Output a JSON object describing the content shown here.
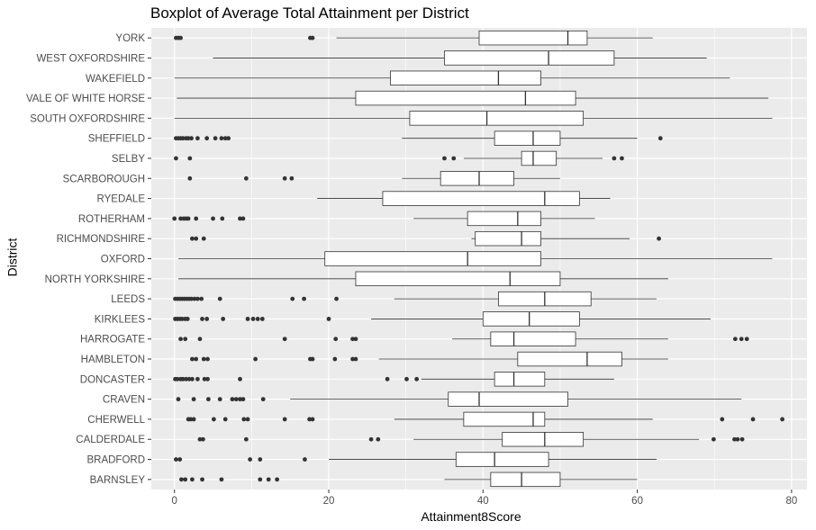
{
  "chart_data": {
    "type": "boxplot",
    "orientation": "horizontal",
    "title": "Boxplot of Average Total Attainment per District",
    "xlabel": "Attainment8Score",
    "ylabel": "District",
    "xlim": [
      -3,
      82
    ],
    "x_ticks": [
      0,
      20,
      40,
      60,
      80
    ],
    "grid": true,
    "colors": {
      "panel": "#ebebeb",
      "grid": "#ffffff",
      "box_fill": "#ffffff",
      "line": "#333333",
      "outlier": "#333333"
    },
    "categories": [
      "YORK",
      "WEST OXFORDSHIRE",
      "WAKEFIELD",
      "VALE OF WHITE HORSE",
      "SOUTH OXFORDSHIRE",
      "SHEFFIELD",
      "SELBY",
      "SCARBOROUGH",
      "RYEDALE",
      "ROTHERHAM",
      "RICHMONDSHIRE",
      "OXFORD",
      "NORTH YORKSHIRE",
      "LEEDS",
      "KIRKLEES",
      "HARROGATE",
      "HAMBLETON",
      "DONCASTER",
      "CRAVEN",
      "CHERWELL",
      "CALDERDALE",
      "BRADFORD",
      "BARNSLEY"
    ],
    "boxes": [
      {
        "category": "YORK",
        "whisker_low": 21,
        "q1": 39.5,
        "median": 51,
        "q3": 53.5,
        "whisker_high": 62,
        "outliers": [
          0.2,
          0.5,
          0.8,
          17.6,
          17.9
        ]
      },
      {
        "category": "WEST OXFORDSHIRE",
        "whisker_low": 5,
        "q1": 35,
        "median": 48.5,
        "q3": 57,
        "whisker_high": 69,
        "outliers": []
      },
      {
        "category": "WAKEFIELD",
        "whisker_low": 0,
        "q1": 28,
        "median": 42,
        "q3": 47.5,
        "whisker_high": 72,
        "outliers": []
      },
      {
        "category": "VALE OF WHITE HORSE",
        "whisker_low": 0.3,
        "q1": 23.5,
        "median": 45.5,
        "q3": 52,
        "whisker_high": 77,
        "outliers": []
      },
      {
        "category": "SOUTH OXFORDSHIRE",
        "whisker_low": 0,
        "q1": 30.5,
        "median": 40.5,
        "q3": 53,
        "whisker_high": 77.5,
        "outliers": []
      },
      {
        "category": "SHEFFIELD",
        "whisker_low": 29.5,
        "q1": 41.5,
        "median": 46.5,
        "q3": 50,
        "whisker_high": 60,
        "outliers": [
          0.2,
          0.5,
          0.8,
          1.1,
          1.5,
          1.8,
          2.2,
          3,
          4.2,
          5.3,
          6.1,
          6.6,
          7,
          63
        ]
      },
      {
        "category": "SELBY",
        "whisker_low": 37.5,
        "q1": 45,
        "median": 46.5,
        "q3": 49.5,
        "whisker_high": 55.5,
        "outliers": [
          0.2,
          2,
          35,
          36.2,
          57,
          58
        ]
      },
      {
        "category": "SCARBOROUGH",
        "whisker_low": 29.5,
        "q1": 34.5,
        "median": 39.5,
        "q3": 44,
        "whisker_high": 50,
        "outliers": [
          2,
          9.3,
          14.3,
          15.2
        ]
      },
      {
        "category": "RYEDALE",
        "whisker_low": 18.5,
        "q1": 27,
        "median": 48,
        "q3": 52.5,
        "whisker_high": 56.5,
        "outliers": []
      },
      {
        "category": "ROTHERHAM",
        "whisker_low": 31,
        "q1": 38,
        "median": 44.5,
        "q3": 47.5,
        "whisker_high": 54.5,
        "outliers": [
          0,
          0.8,
          1.2,
          1.5,
          1.8,
          2.8,
          5,
          6.2,
          8.5,
          8.9
        ]
      },
      {
        "category": "RICHMONDSHIRE",
        "whisker_low": 38.5,
        "q1": 39,
        "median": 45,
        "q3": 47.5,
        "whisker_high": 59,
        "outliers": [
          2.3,
          2.8,
          3.8,
          62.8
        ]
      },
      {
        "category": "OXFORD",
        "whisker_low": 0.5,
        "q1": 19.5,
        "median": 38,
        "q3": 47.5,
        "whisker_high": 77.5,
        "outliers": []
      },
      {
        "category": "NORTH YORKSHIRE",
        "whisker_low": 0.5,
        "q1": 23.5,
        "median": 43.5,
        "q3": 50,
        "whisker_high": 64,
        "outliers": []
      },
      {
        "category": "LEEDS",
        "whisker_low": 28.5,
        "q1": 42,
        "median": 48,
        "q3": 54,
        "whisker_high": 62.5,
        "outliers": [
          0.1,
          0.4,
          0.7,
          1,
          1.3,
          1.6,
          1.9,
          2.2,
          2.6,
          3,
          3.5,
          5.9,
          15.3,
          16.8,
          21
        ]
      },
      {
        "category": "KIRKLEES",
        "whisker_low": 25.5,
        "q1": 40,
        "median": 46,
        "q3": 52.5,
        "whisker_high": 69.5,
        "outliers": [
          0.1,
          0.4,
          0.7,
          1,
          1.4,
          1.7,
          3.6,
          4.2,
          6.3,
          9.5,
          10.2,
          10.8,
          11.4,
          20
        ]
      },
      {
        "category": "HARROGATE",
        "whisker_low": 36,
        "q1": 41,
        "median": 44,
        "q3": 52,
        "whisker_high": 64,
        "outliers": [
          0.8,
          1.4,
          3.3,
          14.3,
          20.9,
          23.1,
          23.5,
          72.7,
          73.5,
          74.2
        ]
      },
      {
        "category": "HAMBLETON",
        "whisker_low": 26.5,
        "q1": 44.5,
        "median": 53.5,
        "q3": 58,
        "whisker_high": 64,
        "outliers": [
          2.3,
          2.8,
          3.8,
          4.3,
          10.5,
          17.6,
          17.9,
          20.8,
          23.1,
          23.5
        ]
      },
      {
        "category": "DONCASTER",
        "whisker_low": 32,
        "q1": 41.5,
        "median": 44,
        "q3": 48,
        "whisker_high": 57,
        "outliers": [
          0.1,
          0.4,
          0.8,
          1.1,
          1.5,
          1.9,
          2.3,
          3,
          3.9,
          4.3,
          8.5,
          27.6,
          30.1,
          31.4
        ]
      },
      {
        "category": "CRAVEN",
        "whisker_low": 15,
        "q1": 35.5,
        "median": 39.5,
        "q3": 51,
        "whisker_high": 73.5,
        "outliers": [
          0.5,
          2.5,
          4.4,
          5.9,
          7.5,
          8,
          8.5,
          8.9,
          11.5
        ]
      },
      {
        "category": "CHERWELL",
        "whisker_low": 28.5,
        "q1": 37.5,
        "median": 46.5,
        "q3": 48,
        "whisker_high": 62,
        "outliers": [
          1.8,
          2.1,
          2.5,
          5.1,
          6.6,
          9,
          9.5,
          14.3,
          17.5,
          17.9,
          71,
          75,
          78.8
        ]
      },
      {
        "category": "CALDERDALE",
        "whisker_low": 31,
        "q1": 42.5,
        "median": 48,
        "q3": 53,
        "whisker_high": 68,
        "outliers": [
          3.3,
          3.7,
          9.3,
          25.5,
          26.4,
          69.9,
          72.6,
          73,
          73.6
        ]
      },
      {
        "category": "BRADFORD",
        "whisker_low": 20,
        "q1": 36.5,
        "median": 41.5,
        "q3": 48.5,
        "whisker_high": 62.5,
        "outliers": [
          0.2,
          0.7,
          9.8,
          11.1,
          16.9
        ]
      },
      {
        "category": "BARNSLEY",
        "whisker_low": 35,
        "q1": 41,
        "median": 45,
        "q3": 50,
        "whisker_high": 60,
        "outliers": [
          0.9,
          1.4,
          2.3,
          3.6,
          6.1,
          11.1,
          12.2,
          13.3
        ]
      }
    ]
  }
}
